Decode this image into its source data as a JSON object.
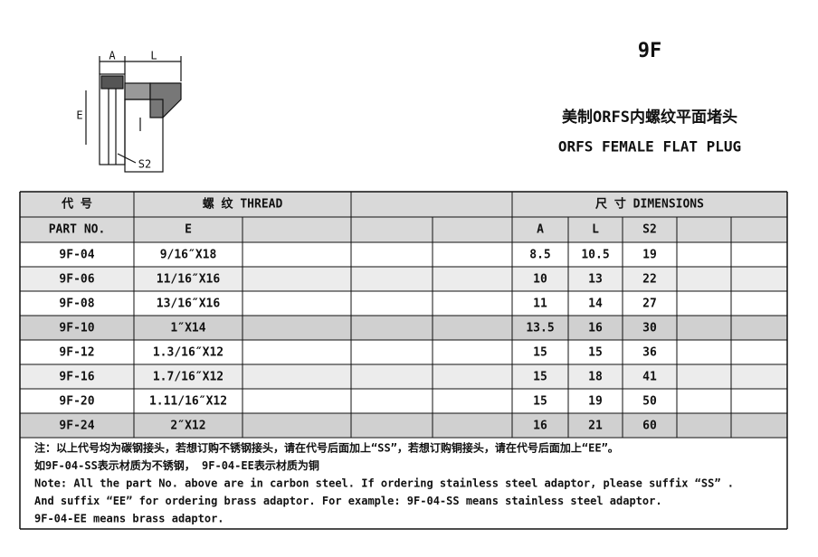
{
  "header": {
    "model": "9F",
    "title_cn": "美制ORFS内螺纹平面堵头",
    "title_en": "ORFS FEMALE FLAT PLUG"
  },
  "drawing": {
    "labels": [
      "A",
      "L",
      "E",
      "S2"
    ]
  },
  "table": {
    "head1": [
      "代 号",
      "螺 纹   THREAD",
      "尺 寸   DIMENSIONS"
    ],
    "head2": [
      "PART NO.",
      "E",
      "A",
      "L",
      "S2"
    ],
    "rows": [
      [
        "9F-04",
        "9/16″X18",
        "8.5",
        "10.5",
        "19"
      ],
      [
        "9F-06",
        "11/16″X16",
        "10",
        "13",
        "22"
      ],
      [
        "9F-08",
        "13/16″X16",
        "11",
        "14",
        "27"
      ],
      [
        "9F-10",
        "1″X14",
        "13.5",
        "16",
        "30"
      ],
      [
        "9F-12",
        "1.3/16″X12",
        "15",
        "15",
        "36"
      ],
      [
        "9F-16",
        "1.7/16″X12",
        "15",
        "18",
        "41"
      ],
      [
        "9F-20",
        "1.11/16″X12",
        "15",
        "19",
        "50"
      ],
      [
        "9F-24",
        "2″X12",
        "16",
        "21",
        "60"
      ]
    ]
  },
  "note": [
    "注：以上代号均为碳钢接头，若想订购不锈钢接头，请在代号后面加上“SS”，若想订购铜接头，请在代号后面加上“EE”。",
    "如9F-04-SS表示材质为不锈钢， 9F-04-EE表示材质为铜",
    "Note: All the part No. above are in carbon steel. If ordering stainless steel adaptor, please suffix “SS” .",
    "And suffix “EE”  for ordering brass adaptor. For example: 9F-04-SS  means stainless steel adaptor.",
    "9F-04-EE means brass adaptor."
  ]
}
